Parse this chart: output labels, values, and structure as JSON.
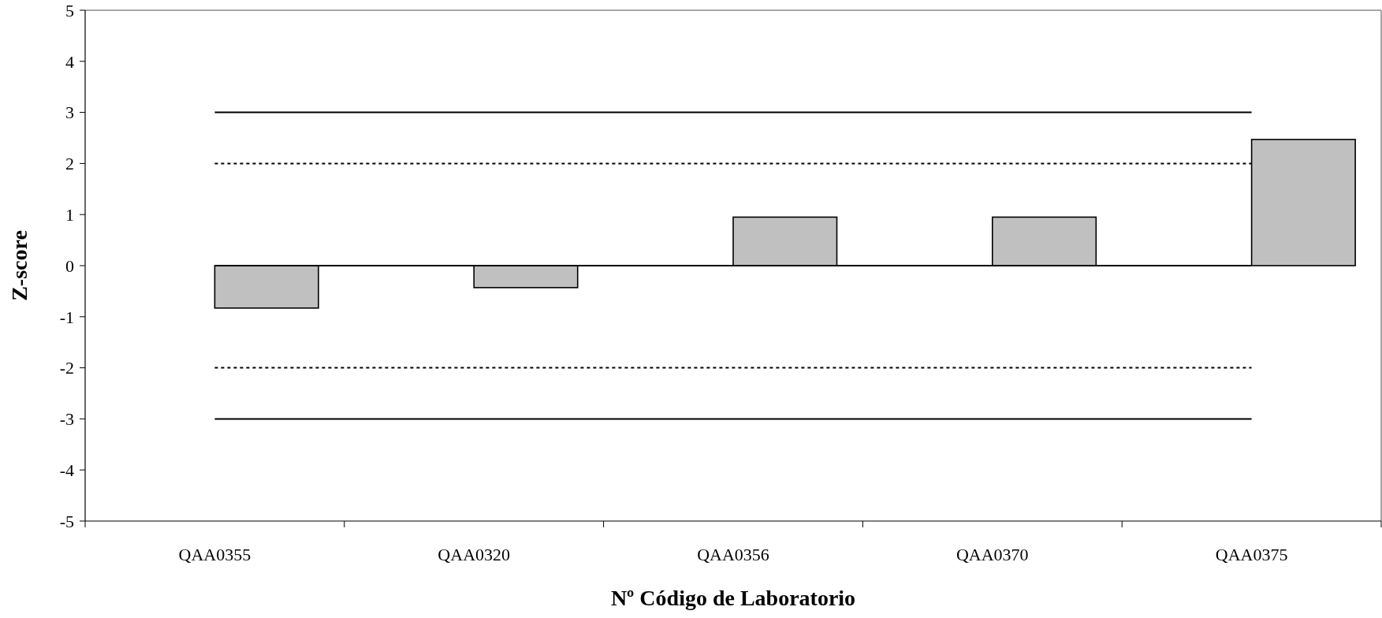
{
  "chart_data": {
    "type": "bar",
    "xlabel": "Nº Código de Laboratorio",
    "ylabel": "Z-score",
    "categories": [
      "QAA0355",
      "QAA0320",
      "QAA0356",
      "QAA0370",
      "QAA0375"
    ],
    "series": [
      {
        "color": "#c0c0c0",
        "values": [
          -0.83,
          -0.43,
          0.95,
          0.95,
          2.47
        ]
      },
      {
        "type": "line",
        "color": "#000000",
        "line_style": "solid",
        "values": [
          3,
          3,
          3,
          3,
          3
        ]
      },
      {
        "type": "line",
        "color": "#000000",
        "line_style": "dotted",
        "values": [
          2,
          2,
          2,
          2,
          2
        ]
      },
      {
        "type": "line",
        "color": "#000000",
        "line_style": "solid",
        "values": [
          0,
          0,
          0,
          0,
          0
        ]
      },
      {
        "type": "line",
        "color": "#000000",
        "line_style": "dotted",
        "values": [
          -2,
          -2,
          -2,
          -2,
          -2
        ]
      },
      {
        "type": "line",
        "color": "#000000",
        "line_style": "solid",
        "values": [
          -3,
          -3,
          -3,
          -3,
          -3
        ]
      }
    ],
    "ylim": [
      -5,
      5
    ],
    "yticks": [
      -5,
      -4,
      -3,
      -2,
      -1,
      0,
      1,
      2,
      3,
      4,
      5
    ],
    "grid": false,
    "marker": "none"
  }
}
